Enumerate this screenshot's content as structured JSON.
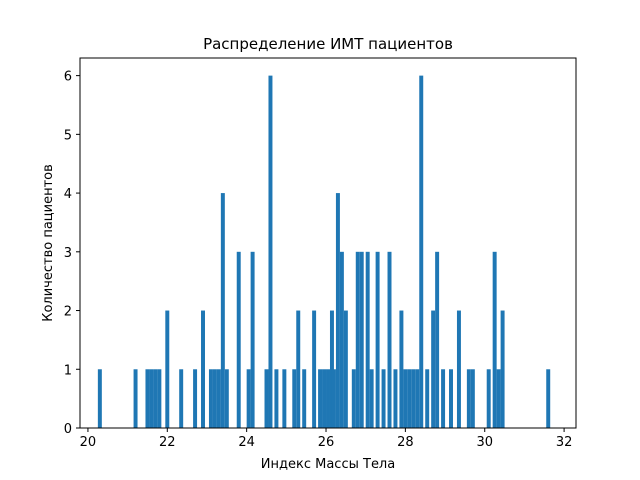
{
  "chart_data": {
    "type": "bar",
    "title": "Распределение ИМТ пациентов",
    "xlabel": "Индекс Массы Тела",
    "ylabel": "Количество пациентов",
    "xlim": [
      19.8,
      32.3
    ],
    "ylim": [
      0,
      6.3
    ],
    "bin_width": 0.1,
    "bar_color": "#1f77b4",
    "grid": false,
    "x_ticks": [
      20,
      22,
      24,
      26,
      28,
      30,
      32
    ],
    "y_ticks": [
      0,
      1,
      2,
      3,
      4,
      5,
      6
    ],
    "x": [
      20.3,
      21.2,
      21.5,
      21.6,
      21.7,
      21.8,
      22.0,
      22.35,
      22.7,
      22.9,
      23.1,
      23.2,
      23.3,
      23.4,
      23.5,
      23.8,
      24.05,
      24.15,
      24.5,
      24.6,
      24.75,
      24.95,
      25.2,
      25.3,
      25.45,
      25.7,
      25.85,
      25.95,
      26.05,
      26.15,
      26.2,
      26.3,
      26.4,
      26.5,
      26.7,
      26.8,
      26.9,
      27.05,
      27.15,
      27.3,
      27.45,
      27.6,
      27.75,
      27.9,
      28.0,
      28.1,
      28.2,
      28.3,
      28.4,
      28.55,
      28.7,
      28.8,
      28.95,
      29.15,
      29.35,
      29.6,
      29.7,
      30.1,
      30.25,
      30.35,
      30.45,
      31.6
    ],
    "values": [
      1,
      1,
      1,
      1,
      1,
      1,
      2,
      1,
      1,
      2,
      1,
      1,
      1,
      4,
      1,
      3,
      1,
      3,
      1,
      6,
      1,
      1,
      1,
      2,
      1,
      2,
      1,
      1,
      1,
      2,
      1,
      4,
      3,
      2,
      1,
      3,
      3,
      3,
      1,
      3,
      1,
      3,
      1,
      2,
      1,
      1,
      1,
      1,
      6,
      1,
      2,
      3,
      1,
      1,
      2,
      1,
      1,
      1,
      3,
      1,
      2,
      1
    ]
  }
}
